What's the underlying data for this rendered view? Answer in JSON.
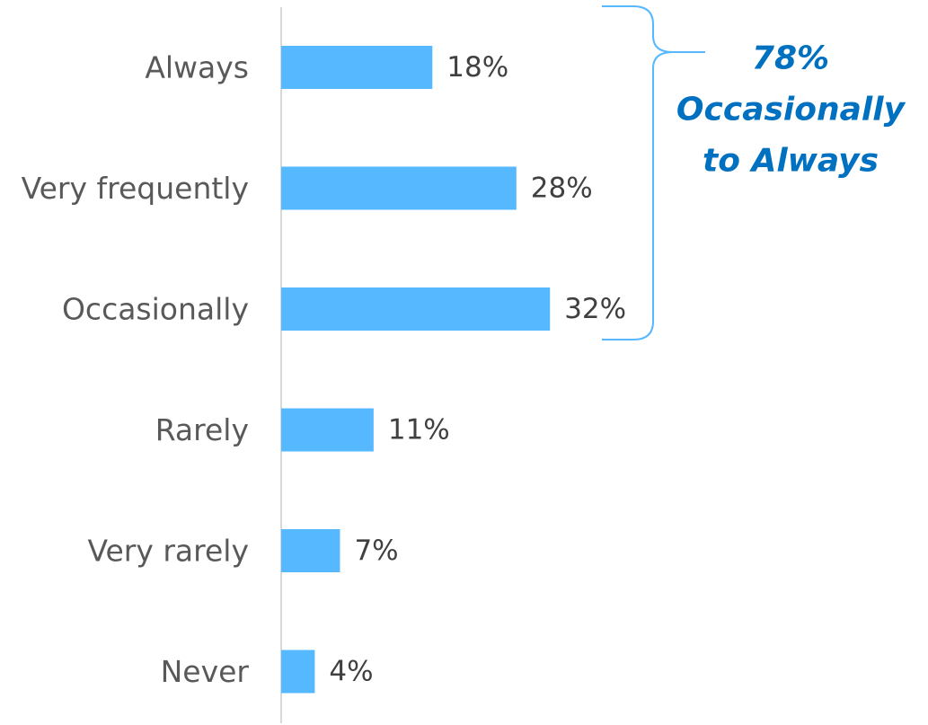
{
  "chart_data": {
    "type": "bar",
    "orientation": "horizontal",
    "categories": [
      "Always",
      "Very frequently",
      "Occasionally",
      "Rarely",
      "Very rarely",
      "Never"
    ],
    "values": [
      18,
      28,
      32,
      11,
      7,
      4
    ],
    "value_labels": [
      "18%",
      "28%",
      "32%",
      "11%",
      "7%",
      "4%"
    ],
    "unit": "%",
    "xlim": [
      0,
      40
    ],
    "grid": false,
    "legend": "none",
    "bar_color": "#56B8FF",
    "annotation": {
      "lines": [
        "78%",
        "Occasionally",
        "to Always"
      ],
      "color": "#0070C0",
      "bracket_color": "#56B8FF",
      "spans_categories": [
        "Always",
        "Very frequently",
        "Occasionally"
      ]
    }
  }
}
